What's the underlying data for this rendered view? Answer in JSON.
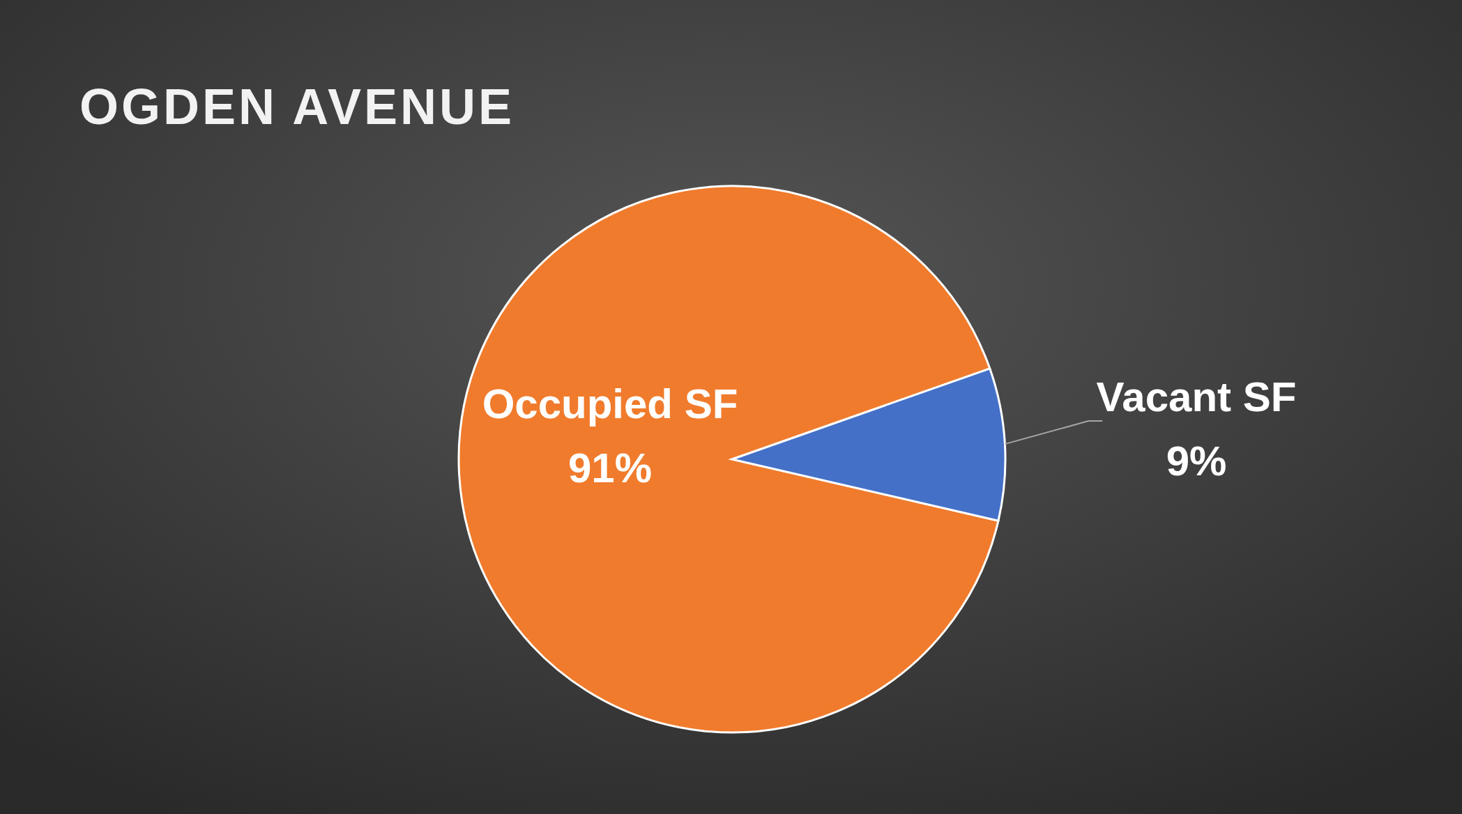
{
  "chart_data": {
    "type": "pie",
    "title": "OGDEN AVENUE",
    "categories": [
      "Occupied SF",
      "Vacant SF"
    ],
    "values": [
      91,
      9
    ],
    "colors": [
      "#f07b2c",
      "#4470c8"
    ],
    "value_labels": [
      "91%",
      "9%"
    ]
  }
}
